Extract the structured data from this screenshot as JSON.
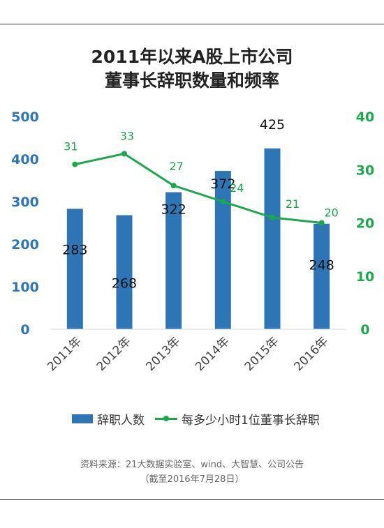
{
  "title_line1": "2011年以来A股上市公司",
  "title_line2": "董事长辞职数量和频率",
  "chart_data": {
    "type": "bar",
    "categories": [
      "2011年",
      "2012年",
      "2013年",
      "2014年",
      "2015年",
      "2016年"
    ],
    "series": [
      {
        "name": "辞职人数",
        "type": "bar",
        "axis": "left",
        "color": "#2e75b6",
        "values": [
          283,
          268,
          322,
          372,
          425,
          248
        ]
      },
      {
        "name": "每多少小时1位董事长辞职",
        "type": "line",
        "axis": "right",
        "color": "#1aa84a",
        "values": [
          31,
          33,
          27,
          24,
          21,
          20
        ]
      }
    ],
    "y_left": {
      "ticks": [
        0,
        100,
        200,
        300,
        400,
        500
      ],
      "ylim": [
        0,
        500
      ],
      "color": "#2e75b6"
    },
    "y_right": {
      "ticks": [
        0,
        10,
        20,
        30,
        40
      ],
      "ylim": [
        0,
        40
      ],
      "color": "#1aa84a"
    },
    "legend_position": "bottom",
    "grid": false
  },
  "legend": {
    "bar_label": "辞职人数",
    "line_label": "每多少小时1位董事长辞职"
  },
  "source": {
    "line1": "资料来源：21大数据实验室、wind、大智慧、公司公告",
    "line2": "（截至2016年7月28日）"
  }
}
